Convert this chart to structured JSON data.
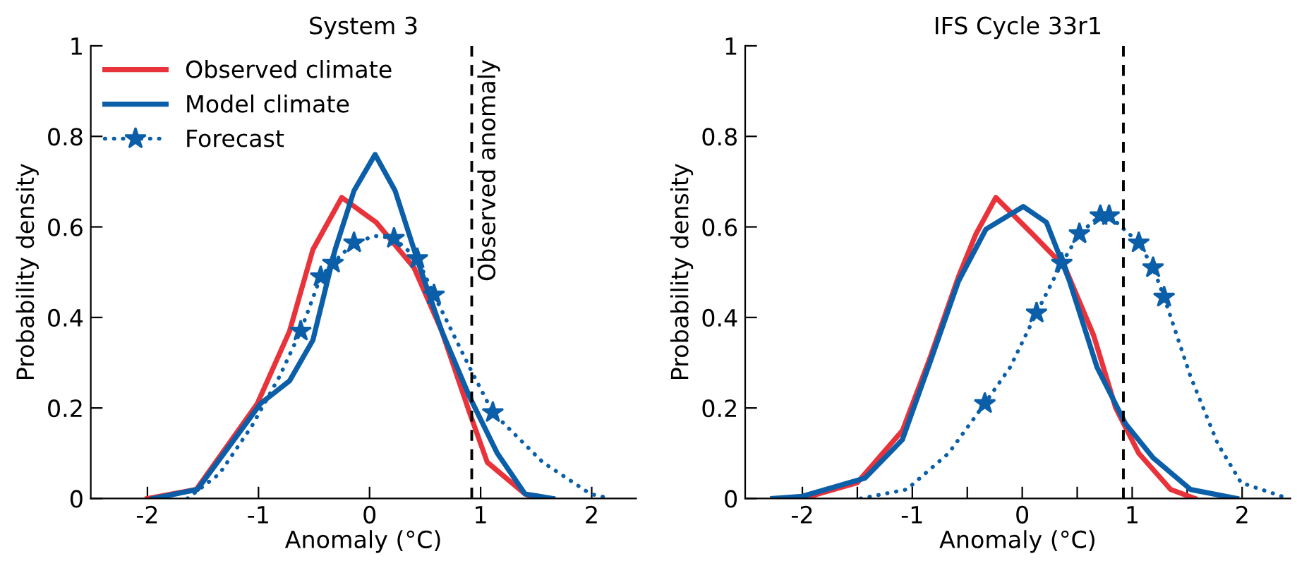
{
  "chart_data": [
    {
      "type": "line",
      "title": "System 3",
      "xlabel": "Anomaly (°C)",
      "ylabel": "Probability density",
      "xlim": [
        -2.51,
        2.4
      ],
      "xticks": [
        -2,
        -1,
        0,
        1,
        2
      ],
      "ylim": [
        0,
        1
      ],
      "yticks": [
        0,
        0.2,
        0.4,
        0.6,
        0.8,
        1
      ],
      "grid": false,
      "legend": "top left",
      "line_style": "solid",
      "ref_lines": [
        {
          "axis": "x",
          "value": 0.92,
          "label": "Observed anomaly",
          "color": "#000000",
          "line_style": "dashed"
        }
      ],
      "series": [
        {
          "name": "Observed climate",
          "color": "#e8333a",
          "x": [
            -2.0,
            -1.56,
            -1.01,
            -0.72,
            -0.51,
            -0.25,
            0.06,
            0.4,
            0.65,
            0.9,
            1.06,
            1.4,
            1.5
          ],
          "values": [
            0,
            0.02,
            0.21,
            0.37,
            0.55,
            0.665,
            0.61,
            0.51,
            0.37,
            0.19,
            0.08,
            0.01,
            0
          ]
        },
        {
          "name": "Model climate",
          "color": "#0b5ea8",
          "x": [
            -1.95,
            -1.55,
            -1.22,
            -0.98,
            -0.72,
            -0.51,
            -0.31,
            -0.14,
            0.05,
            0.23,
            0.44,
            0.65,
            0.9,
            1.15,
            1.4,
            1.65
          ],
          "values": [
            0,
            0.02,
            0.13,
            0.21,
            0.26,
            0.35,
            0.55,
            0.68,
            0.76,
            0.68,
            0.52,
            0.37,
            0.225,
            0.1,
            0.01,
            0
          ]
        },
        {
          "name": "Forecast",
          "color": "#0b5ea8",
          "line_style": "dotted",
          "marker": "none",
          "x": [
            -1.64,
            -1.35,
            -1.06,
            -0.81,
            -0.62,
            -0.44,
            -0.33,
            -0.14,
            0.05,
            0.22,
            0.43,
            0.58,
            0.9,
            1.11,
            1.56,
            1.99,
            2.17
          ],
          "values": [
            0,
            0.055,
            0.16,
            0.27,
            0.37,
            0.49,
            0.52,
            0.565,
            0.58,
            0.575,
            0.53,
            0.45,
            0.29,
            0.19,
            0.08,
            0.01,
            0
          ]
        },
        {
          "type": "scatter",
          "color": "#0b5ea8",
          "marker": "star",
          "x": [
            -0.62,
            -0.44,
            -0.33,
            -0.14,
            0.22,
            0.43,
            0.58,
            1.11
          ],
          "values": [
            0.37,
            0.49,
            0.52,
            0.565,
            0.575,
            0.53,
            0.45,
            0.19
          ]
        }
      ]
    },
    {
      "type": "line",
      "title": "IFS Cycle 33r1",
      "xlabel": "Anomaly (°C)",
      "ylabel": "Probability density",
      "xlim": [
        -2.52,
        2.44
      ],
      "xticks": [
        -2,
        {
          "value": -1.5,
          "label": null
        },
        -1,
        {
          "value": -0.5,
          "label": null
        },
        0,
        {
          "value": 0.5,
          "label": null
        },
        1,
        {
          "value": 1.5,
          "label": null
        },
        2
      ],
      "ylim": [
        0,
        1
      ],
      "yticks": [
        0,
        0.2,
        0.4,
        0.6,
        0.8,
        1
      ],
      "grid": false,
      "line_style": "solid",
      "ref_lines": [
        {
          "axis": "x",
          "value": 0.92,
          "label": null,
          "color": "#000000",
          "line_style": "dashed"
        }
      ],
      "series": [
        {
          "color": "#e8333a",
          "x": [
            -2.0,
            -1.5,
            -1.09,
            -0.84,
            -0.58,
            -0.42,
            -0.24,
            0.09,
            0.39,
            0.65,
            0.85,
            1.06,
            1.35,
            1.57
          ],
          "values": [
            0,
            0.035,
            0.15,
            0.31,
            0.49,
            0.585,
            0.665,
            0.585,
            0.51,
            0.36,
            0.2,
            0.1,
            0.02,
            0
          ]
        },
        {
          "color": "#0b5ea8",
          "x": [
            -2.27,
            -2.0,
            -1.43,
            -1.09,
            -0.84,
            -0.58,
            -0.33,
            0.01,
            0.22,
            0.43,
            0.68,
            0.94,
            1.19,
            1.53,
            1.95
          ],
          "values": [
            0,
            0.005,
            0.045,
            0.13,
            0.3,
            0.48,
            0.595,
            0.645,
            0.61,
            0.48,
            0.29,
            0.165,
            0.09,
            0.02,
            0
          ]
        },
        {
          "color": "#0b5ea8",
          "line_style": "dotted",
          "marker": "none",
          "x": [
            -1.47,
            -1.05,
            -0.67,
            -0.34,
            -0.11,
            0.13,
            0.36,
            0.52,
            0.71,
            0.79,
            1.06,
            1.19,
            1.29,
            1.53,
            1.78,
            1.99,
            2.42
          ],
          "values": [
            0,
            0.02,
            0.1,
            0.21,
            0.29,
            0.41,
            0.52,
            0.585,
            0.625,
            0.625,
            0.565,
            0.51,
            0.445,
            0.27,
            0.12,
            0.035,
            0
          ]
        },
        {
          "type": "scatter",
          "color": "#0b5ea8",
          "marker": "star",
          "x": [
            -0.34,
            0.13,
            0.36,
            0.52,
            0.71,
            0.79,
            1.06,
            1.19,
            1.29
          ],
          "values": [
            0.21,
            0.41,
            0.52,
            0.585,
            0.625,
            0.625,
            0.565,
            0.51,
            0.445
          ]
        }
      ]
    }
  ]
}
